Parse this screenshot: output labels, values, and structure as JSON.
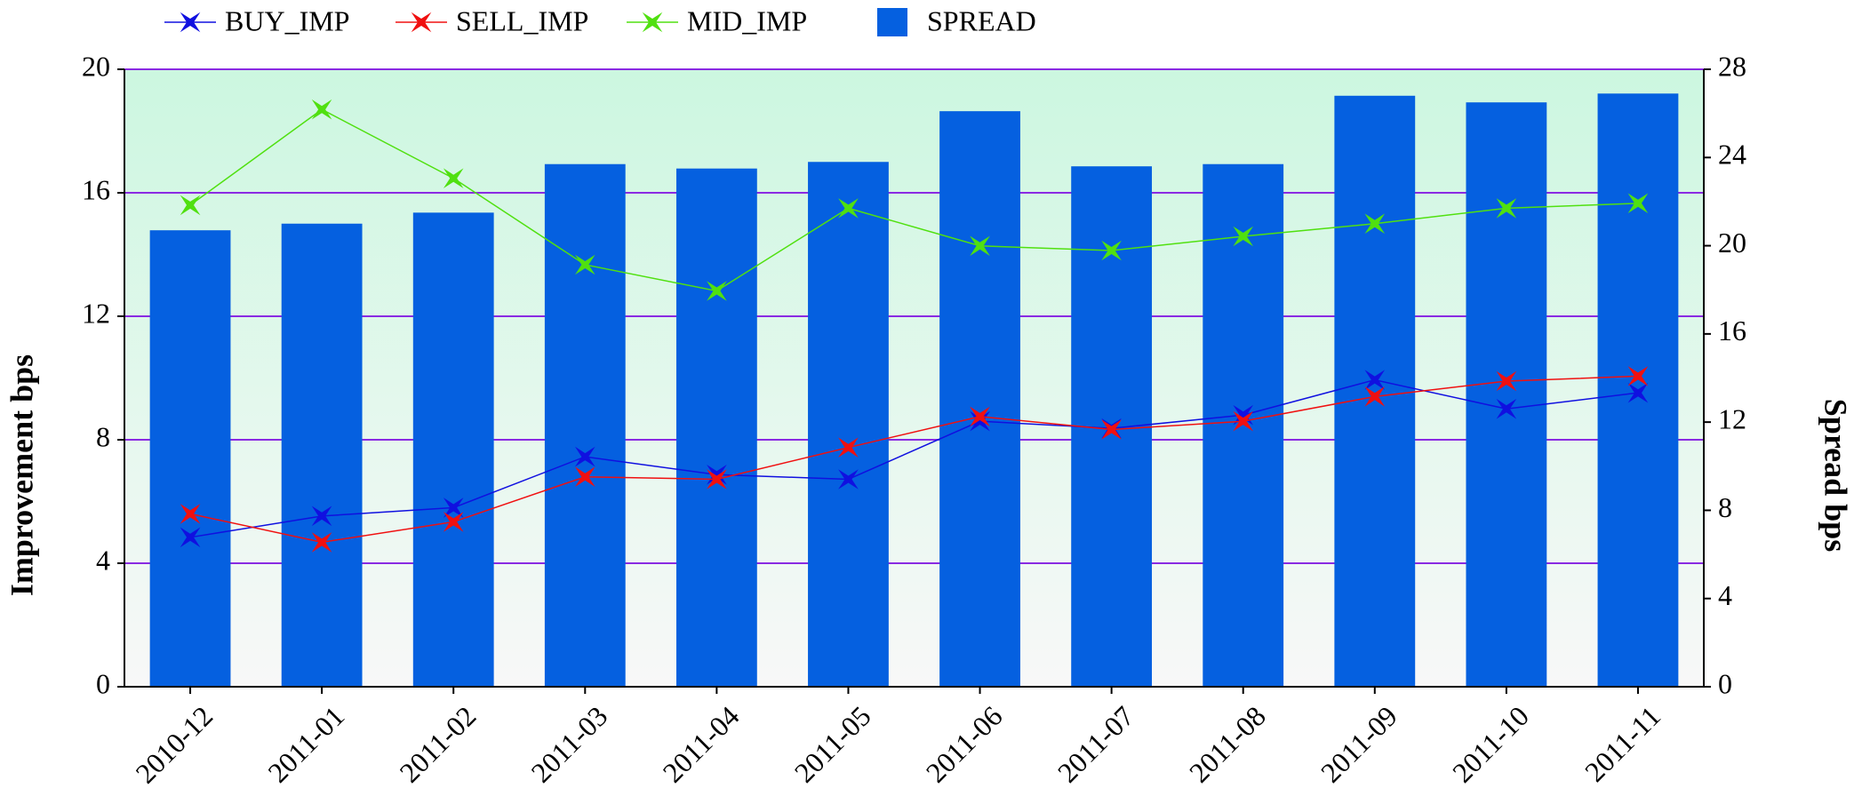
{
  "chart_data": {
    "type": "combo",
    "categories": [
      "2010-12",
      "2011-01",
      "2011-02",
      "2011-03",
      "2011-04",
      "2011-05",
      "2011-06",
      "2011-07",
      "2011-08",
      "2011-09",
      "2011-10",
      "2011-11"
    ],
    "ylabel": "Improvement bps",
    "y2label": "Spread bps",
    "ylim": [
      0,
      20
    ],
    "yticks": [
      0,
      4,
      8,
      12,
      16,
      20
    ],
    "y2lim": [
      0,
      28
    ],
    "y2ticks": [
      0,
      4,
      8,
      12,
      16,
      20,
      24,
      28
    ],
    "grid": true,
    "legend": "top",
    "series": [
      {
        "name": "BUY_IMP",
        "type": "line",
        "color": "#1010e0",
        "values": [
          4.84,
          5.53,
          5.8,
          7.45,
          6.87,
          6.72,
          8.6,
          8.37,
          8.8,
          9.94,
          9.0,
          9.52
        ]
      },
      {
        "name": "SELL_IMP",
        "type": "line",
        "color": "#f01010",
        "values": [
          5.6,
          4.68,
          5.34,
          6.8,
          6.72,
          7.75,
          8.75,
          8.33,
          8.6,
          9.4,
          9.9,
          10.06
        ]
      },
      {
        "name": "MID_IMP",
        "type": "line",
        "color": "#50e010",
        "values": [
          15.6,
          18.7,
          16.47,
          13.67,
          12.82,
          15.5,
          14.28,
          14.13,
          14.59,
          15.0,
          15.5,
          15.66
        ]
      },
      {
        "name": "SPREAD",
        "type": "bar",
        "axis": "y2",
        "color": "#0560e0",
        "values": [
          20.7,
          21.0,
          21.5,
          23.7,
          23.5,
          23.8,
          26.1,
          23.6,
          23.7,
          26.8,
          26.5,
          26.9
        ]
      }
    ]
  }
}
